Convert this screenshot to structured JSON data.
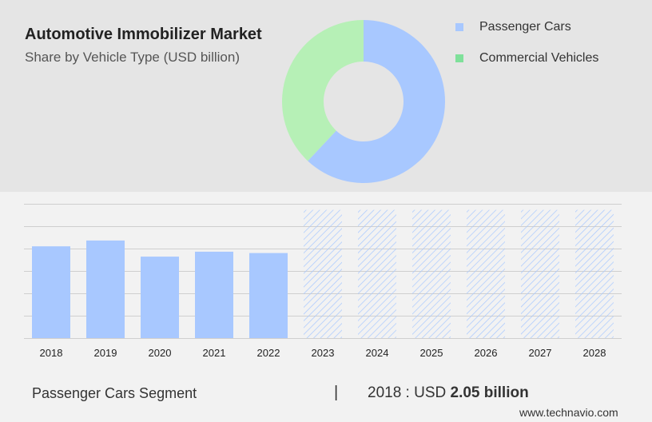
{
  "header": {
    "title": "Automotive Immobilizer Market",
    "subtitle": "Share by Vehicle Type (USD billion)"
  },
  "colors": {
    "passenger": "#a8c8ff",
    "commercial": "#b6f0b6",
    "legend_commercial": "#7fe09a",
    "forecast_hatch": "#a8c8ff"
  },
  "chart_data": [
    {
      "type": "pie",
      "variant": "donut",
      "title": "Automotive Immobilizer Market",
      "subtitle": "Share by Vehicle Type (USD billion)",
      "series": [
        {
          "name": "Passenger Cars",
          "value": 62
        },
        {
          "name": "Commercial Vehicles",
          "value": 38
        }
      ],
      "legend": "right"
    },
    {
      "type": "bar",
      "categories": [
        "2018",
        "2019",
        "2020",
        "2021",
        "2022",
        "2023",
        "2024",
        "2025",
        "2026",
        "2027",
        "2028"
      ],
      "values": [
        2.05,
        2.18,
        1.82,
        1.93,
        1.9,
        null,
        null,
        null,
        null,
        null,
        null
      ],
      "forecast_years": [
        "2023",
        "2024",
        "2025",
        "2026",
        "2027",
        "2028"
      ],
      "ylim": [
        0,
        3.0
      ],
      "grid": true
    }
  ],
  "footer": {
    "segment_label": "Passenger Cars Segment",
    "separator": "|",
    "value_prefix": "2018 : USD ",
    "value_bold": "2.05 billion",
    "source": "www.technavio.com"
  }
}
